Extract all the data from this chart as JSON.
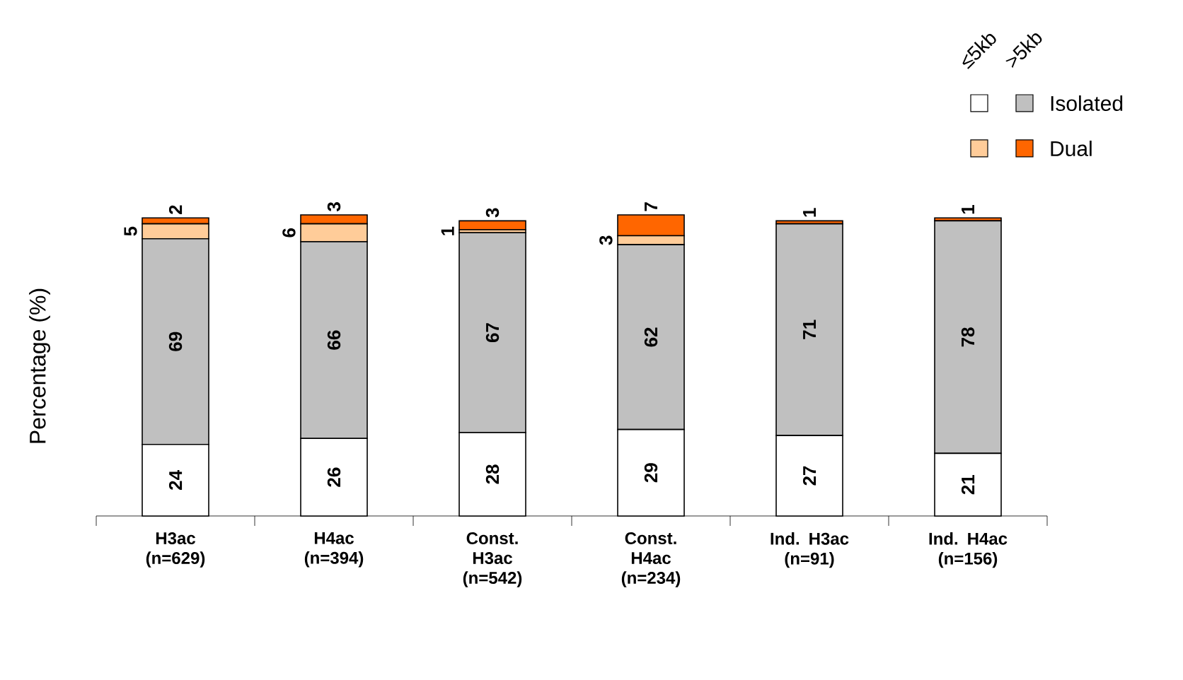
{
  "chart_data": {
    "type": "bar",
    "stacked": true,
    "ylabel": "Percentage (%)",
    "legend": "top right",
    "annotations": [
      "≤5kb",
      ">5kb"
    ],
    "categories": [
      "H3ac (n=629)",
      "H4ac (n=394)",
      "Const. H3ac (n=542)",
      "Const. H4ac (n=234)",
      "Ind. H3ac (n=91)",
      "Ind. H4ac (n=156)"
    ],
    "series": [
      {
        "color": "#ffffff",
        "values": [
          24,
          26,
          28,
          29,
          27,
          21
        ],
        "value_labels": [
          "24",
          "26",
          "28",
          "29",
          "27",
          "21"
        ]
      },
      {
        "name": "Isolated",
        "color": "#c0c0c0",
        "values": [
          69,
          66,
          67,
          62,
          71,
          78
        ],
        "value_labels": [
          "69",
          "66",
          "67",
          "62",
          "71",
          "78"
        ]
      },
      {
        "color": "#ffcc99",
        "values": [
          5,
          6,
          1,
          3,
          0,
          0
        ],
        "value_labels": [
          "5",
          "6",
          "1",
          "3",
          null,
          null
        ]
      },
      {
        "name": "Dual",
        "color": "#ff6600",
        "values": [
          2,
          3,
          3,
          7,
          1,
          1
        ],
        "value_labels": [
          "2",
          "3",
          "3",
          "7",
          "1",
          "1"
        ]
      }
    ]
  }
}
